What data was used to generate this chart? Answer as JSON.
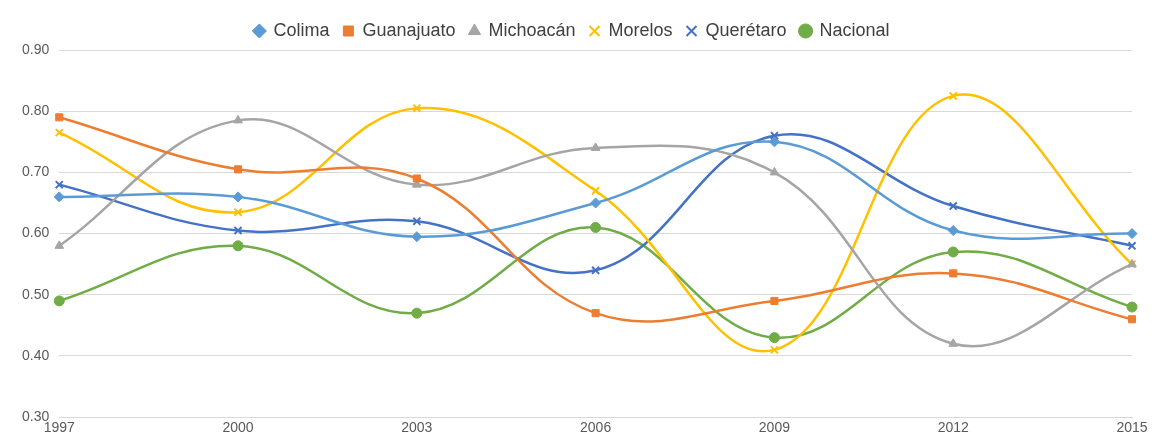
{
  "chart_data": {
    "type": "line",
    "categories": [
      "1997",
      "2000",
      "2003",
      "2006",
      "2009",
      "2012",
      "2015"
    ],
    "series": [
      {
        "name": "Colima",
        "color": "#5b9bd5",
        "marker": "diamond",
        "values": [
          0.66,
          0.66,
          0.595,
          0.65,
          0.75,
          0.605,
          0.6
        ]
      },
      {
        "name": "Guanajuato",
        "color": "#ed7d31",
        "marker": "square",
        "values": [
          0.79,
          0.705,
          0.69,
          0.47,
          0.49,
          0.535,
          0.46
        ]
      },
      {
        "name": "Michoacán",
        "color": "#a5a5a5",
        "marker": "triangle",
        "values": [
          0.58,
          0.785,
          0.68,
          0.74,
          0.7,
          0.42,
          0.55
        ]
      },
      {
        "name": "Morelos",
        "color": "#ffc000",
        "marker": "cross",
        "values": [
          0.765,
          0.635,
          0.805,
          0.67,
          0.41,
          0.825,
          0.55
        ]
      },
      {
        "name": "Querétaro",
        "color": "#4472c4",
        "marker": "cross",
        "values": [
          0.68,
          0.605,
          0.62,
          0.54,
          0.76,
          0.645,
          0.58
        ]
      },
      {
        "name": "Nacional",
        "color": "#70ad47",
        "marker": "circle",
        "values": [
          0.49,
          0.58,
          0.47,
          0.61,
          0.43,
          0.57,
          0.48
        ]
      }
    ],
    "ylim": [
      0.3,
      0.9
    ],
    "yticks": [
      {
        "value": 0.3,
        "label": "0.30"
      },
      {
        "value": 0.4,
        "label": "0.40"
      },
      {
        "value": 0.5,
        "label": "0.50"
      },
      {
        "value": 0.6,
        "label": "0.60"
      },
      {
        "value": 0.7,
        "label": "0.70"
      },
      {
        "value": 0.8,
        "label": "0.80"
      },
      {
        "value": 0.9,
        "label": "0.90"
      }
    ],
    "grid": "y",
    "legend": "top",
    "line_style": "solid"
  }
}
